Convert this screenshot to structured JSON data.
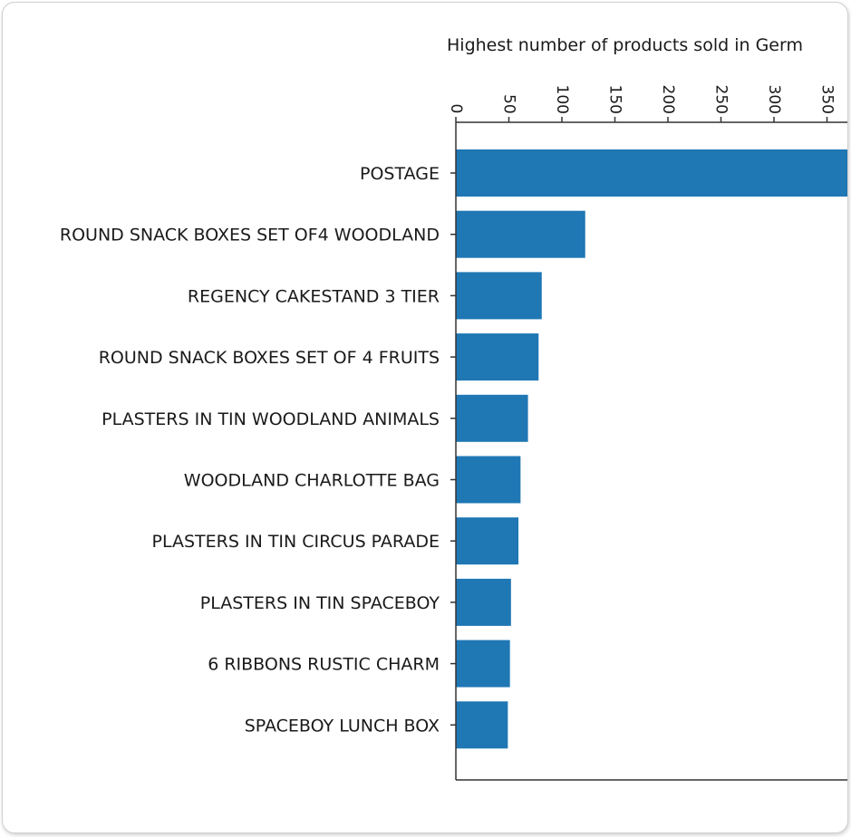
{
  "chart_data": {
    "type": "bar",
    "orientation": "horizontal",
    "title": "Highest number of products sold in Germ",
    "xlabel": "",
    "ylabel": "",
    "xlim": [
      0,
      372
    ],
    "x_ticks": [
      "0",
      "50",
      "100",
      "150",
      "200",
      "250",
      "300",
      "350"
    ],
    "tick_label_rotation": "vertical",
    "x_axis_position": "top",
    "grid": false,
    "legend": "none",
    "bar_color": "#1f77b4",
    "categories": [
      "POSTAGE",
      "ROUND SNACK BOXES SET OF4 WOODLAND",
      "REGENCY CAKESTAND 3 TIER",
      "ROUND SNACK BOXES SET OF 4 FRUITS",
      "PLASTERS IN TIN WOODLAND ANIMALS",
      "WOODLAND CHARLOTTE BAG",
      "PLASTERS IN TIN CIRCUS PARADE",
      "PLASTERS IN TIN SPACEBOY",
      "6 RIBBONS RUSTIC CHARM",
      "SPACEBOY LUNCH BOX"
    ],
    "values": [
      380,
      122,
      81,
      78,
      68,
      61,
      59,
      52,
      51,
      49
    ]
  }
}
